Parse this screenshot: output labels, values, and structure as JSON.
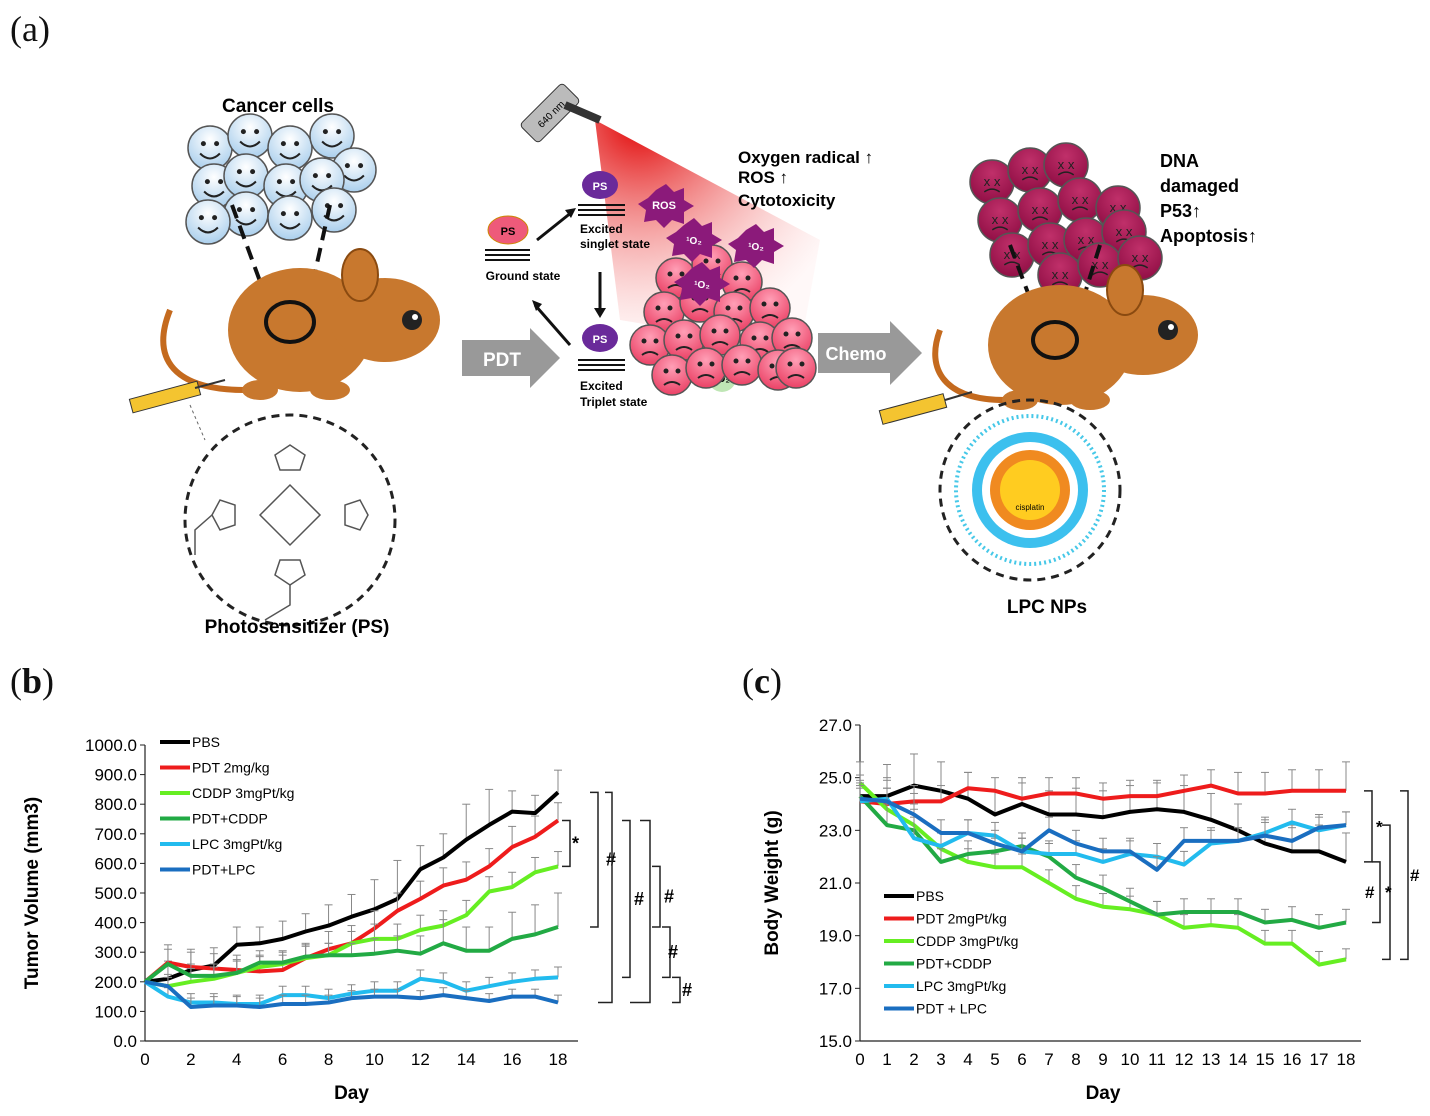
{
  "figure": {
    "panel_a": {
      "label": "(a)",
      "cancer_cells": "Cancer cells",
      "photosensitizer": "Photosensitizer (PS)",
      "pdt_arrow": "PDT",
      "chemo_arrow": "Chemo",
      "laser": "640 nm",
      "ps": "PS",
      "ground_state": "Ground state",
      "excited_singlet": [
        "Excited",
        "singlet state"
      ],
      "excited_triplet": [
        "Excited",
        "Triplet state"
      ],
      "ros": "ROS",
      "singlet_o2": "¹O₂",
      "triplet_o2": "³O₂",
      "effects_pdt": [
        "Oxygen radical ↑",
        "ROS ↑",
        "Cytotoxicity"
      ],
      "effects_chemo": [
        "DNA",
        "damaged",
        "P53↑",
        "Apoptosis↑"
      ],
      "nanoparticle": "LPC NPs",
      "np_core": "cisplatin"
    },
    "panel_b": {
      "label_open": "(",
      "label_letter": "b",
      "label_close": ")"
    },
    "panel_c": {
      "label_open": "(",
      "label_letter": "c",
      "label_close": ")"
    }
  },
  "chart_data": [
    {
      "type": "line",
      "title": "",
      "xlabel": "Day",
      "ylabel": "Tumor Volume (mm3)",
      "xlim": [
        0,
        18
      ],
      "ylim": [
        0,
        1000
      ],
      "xticks": [
        "0",
        "2",
        "4",
        "6",
        "8",
        "10",
        "12",
        "14",
        "16",
        "18"
      ],
      "yticks": [
        "0.0",
        "100.0",
        "200.0",
        "300.0",
        "400.0",
        "500.0",
        "600.0",
        "700.0",
        "800.0",
        "900.0",
        "1000.0"
      ],
      "x": [
        0,
        1,
        2,
        3,
        4,
        5,
        6,
        7,
        8,
        9,
        10,
        11,
        12,
        13,
        14,
        15,
        16,
        17,
        18
      ],
      "series": [
        {
          "name": "PBS",
          "color": "#000000",
          "values": [
            200,
            210,
            240,
            255,
            325,
            330,
            345,
            370,
            390,
            420,
            445,
            480,
            580,
            620,
            680,
            730,
            775,
            770,
            840
          ],
          "err": [
            0,
            60,
            70,
            60,
            60,
            55,
            60,
            60,
            70,
            75,
            100,
            130,
            80,
            80,
            120,
            120,
            70,
            60,
            75
          ]
        },
        {
          "name": "PDT 2mg/kg",
          "color": "#ee1c1c",
          "values": [
            200,
            265,
            250,
            245,
            240,
            235,
            240,
            280,
            310,
            330,
            380,
            440,
            480,
            525,
            545,
            590,
            655,
            690,
            745
          ],
          "err": [
            0,
            60,
            50,
            50,
            50,
            50,
            50,
            50,
            60,
            60,
            60,
            60,
            60,
            60,
            60,
            60,
            70,
            70,
            60
          ]
        },
        {
          "name": "CDDP 3mgPt/kg",
          "color": "#66ee22",
          "values": [
            200,
            185,
            200,
            210,
            230,
            250,
            260,
            280,
            290,
            330,
            345,
            345,
            375,
            390,
            425,
            505,
            520,
            570,
            590
          ],
          "err": [
            0,
            40,
            45,
            40,
            45,
            40,
            40,
            40,
            40,
            40,
            50,
            50,
            50,
            50,
            50,
            50,
            50,
            50,
            50
          ]
        },
        {
          "name": "PDT+CDDP",
          "color": "#22aa44",
          "values": [
            200,
            260,
            220,
            220,
            230,
            265,
            265,
            285,
            290,
            290,
            295,
            305,
            295,
            330,
            305,
            305,
            345,
            360,
            385
          ],
          "err": [
            0,
            50,
            40,
            40,
            40,
            40,
            40,
            40,
            40,
            40,
            50,
            50,
            60,
            80,
            80,
            80,
            90,
            100,
            115
          ]
        },
        {
          "name": "LPC 3mgPt/kg",
          "color": "#22bbee",
          "values": [
            200,
            150,
            130,
            130,
            125,
            125,
            155,
            155,
            145,
            160,
            170,
            170,
            210,
            200,
            170,
            185,
            200,
            210,
            215
          ],
          "err": [
            0,
            30,
            30,
            30,
            30,
            30,
            30,
            30,
            30,
            30,
            30,
            30,
            30,
            30,
            30,
            30,
            30,
            30,
            35
          ]
        },
        {
          "name": "PDT+LPC",
          "color": "#1a6ec0",
          "values": [
            200,
            185,
            115,
            120,
            120,
            115,
            125,
            125,
            130,
            145,
            150,
            150,
            145,
            155,
            145,
            135,
            150,
            150,
            130
          ],
          "err": [
            0,
            30,
            30,
            30,
            30,
            30,
            30,
            30,
            25,
            25,
            25,
            25,
            25,
            25,
            25,
            25,
            25,
            25,
            25
          ]
        }
      ],
      "annotations": [
        "*",
        "#",
        "#",
        "#",
        "#",
        "#"
      ],
      "legend": "top-left"
    },
    {
      "type": "line",
      "title": "",
      "xlabel": "Day",
      "ylabel": "Body Weight (g)",
      "xlim": [
        0,
        18
      ],
      "ylim": [
        15,
        27
      ],
      "xticks": [
        "0",
        "1",
        "2",
        "3",
        "4",
        "5",
        "6",
        "7",
        "8",
        "9",
        "10",
        "11",
        "12",
        "13",
        "14",
        "15",
        "16",
        "17",
        "18"
      ],
      "yticks": [
        "15.0",
        "17.0",
        "19.0",
        "21.0",
        "23.0",
        "25.0",
        "27.0"
      ],
      "x": [
        0,
        1,
        2,
        3,
        4,
        5,
        6,
        7,
        8,
        9,
        10,
        11,
        12,
        13,
        14,
        15,
        16,
        17,
        18
      ],
      "series": [
        {
          "name": "PBS",
          "color": "#000000",
          "values": [
            24.3,
            24.3,
            24.7,
            24.5,
            24.2,
            23.6,
            24.0,
            23.6,
            23.6,
            23.5,
            23.7,
            23.8,
            23.7,
            23.4,
            23.0,
            22.5,
            22.2,
            22.2,
            21.8
          ],
          "err": [
            0.6,
            1.2,
            1.2,
            1.1,
            1.0,
            0.9,
            1.0,
            0.9,
            1.0,
            1.0,
            1.0,
            1.0,
            1.0,
            1.0,
            1.0,
            1.0,
            1.0,
            1.0,
            1.1
          ]
        },
        {
          "name": "PDT 2mgPt/kg",
          "color": "#ee1c1c",
          "values": [
            24.1,
            24.0,
            24.1,
            24.1,
            24.6,
            24.5,
            24.2,
            24.4,
            24.4,
            24.2,
            24.3,
            24.3,
            24.5,
            24.7,
            24.4,
            24.4,
            24.5,
            24.5,
            24.5
          ],
          "err": [
            0.5,
            0.6,
            0.6,
            0.6,
            0.6,
            0.5,
            0.6,
            0.6,
            0.6,
            0.6,
            0.6,
            0.6,
            0.6,
            0.6,
            0.8,
            0.8,
            0.8,
            0.8,
            1.1
          ]
        },
        {
          "name": "CDDP 3mgPt/kg",
          "color": "#66ee22",
          "values": [
            24.8,
            23.8,
            23.2,
            22.3,
            21.8,
            21.6,
            21.6,
            21.0,
            20.4,
            20.1,
            20.0,
            19.8,
            19.3,
            19.4,
            19.3,
            18.7,
            18.7,
            17.9,
            18.1
          ],
          "err": [
            0.8,
            0.8,
            0.8,
            0.6,
            0.5,
            0.5,
            0.5,
            0.5,
            0.5,
            0.5,
            0.5,
            0.5,
            0.5,
            0.5,
            0.5,
            0.5,
            0.5,
            0.5,
            0.4
          ]
        },
        {
          "name": "PDT+CDDP",
          "color": "#22aa44",
          "values": [
            24.3,
            23.2,
            23.0,
            21.8,
            22.1,
            22.2,
            22.4,
            22.0,
            21.2,
            20.8,
            20.3,
            19.8,
            19.9,
            19.9,
            19.9,
            19.5,
            19.6,
            19.3,
            19.5
          ],
          "err": [
            0.8,
            0.8,
            0.8,
            0.5,
            0.5,
            0.5,
            0.5,
            0.5,
            0.5,
            0.5,
            0.5,
            0.5,
            0.5,
            0.5,
            0.5,
            0.5,
            0.5,
            0.5,
            0.5
          ]
        },
        {
          "name": "LPC 3mgPt/kg",
          "color": "#22bbee",
          "values": [
            24.1,
            24.2,
            22.7,
            22.4,
            22.9,
            22.8,
            22.2,
            22.1,
            22.1,
            21.8,
            22.1,
            22.0,
            21.7,
            22.5,
            22.6,
            22.9,
            23.3,
            23.0,
            23.2
          ],
          "err": [
            0.6,
            0.8,
            0.8,
            0.5,
            0.5,
            0.5,
            0.5,
            0.5,
            0.5,
            0.5,
            0.5,
            0.5,
            0.5,
            0.5,
            0.5,
            0.5,
            0.5,
            0.5,
            0.5
          ]
        },
        {
          "name": "PDT + LPC",
          "color": "#1a6ec0",
          "values": [
            24.2,
            24.1,
            23.6,
            22.9,
            22.9,
            22.5,
            22.2,
            23.0,
            22.5,
            22.2,
            22.2,
            21.5,
            22.6,
            22.6,
            22.6,
            22.8,
            22.6,
            23.1,
            23.2
          ],
          "err": [
            0.6,
            0.8,
            0.8,
            0.5,
            0.5,
            0.5,
            0.5,
            0.5,
            0.5,
            0.5,
            0.5,
            0.5,
            0.5,
            0.5,
            0.5,
            0.5,
            0.5,
            0.5,
            0.5
          ]
        }
      ],
      "annotations": [
        "*",
        "#",
        "*",
        "#"
      ],
      "legend": "bottom-left"
    }
  ]
}
